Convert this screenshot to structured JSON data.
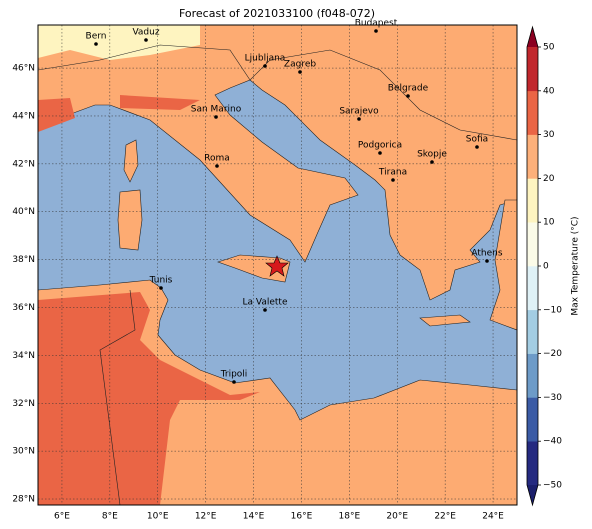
{
  "map": {
    "title": "Forecast of 2021033100 (f048-072)",
    "lonlim": [
      5,
      25
    ],
    "latlim": [
      27.75,
      47.8
    ],
    "lonticks": [
      {
        "value": 6,
        "label": "6°E"
      },
      {
        "value": 8,
        "label": "8°E"
      },
      {
        "value": 10,
        "label": "10°E"
      },
      {
        "value": 12,
        "label": "12°E"
      },
      {
        "value": 14,
        "label": "14°E"
      },
      {
        "value": 16,
        "label": "16°E"
      },
      {
        "value": 18,
        "label": "18°E"
      },
      {
        "value": 20,
        "label": "20°E"
      },
      {
        "value": 22,
        "label": "22°E"
      },
      {
        "value": 24,
        "label": "24°E"
      }
    ],
    "latticks": [
      {
        "value": 28,
        "label": "28°N"
      },
      {
        "value": 30,
        "label": "30°N"
      },
      {
        "value": 32,
        "label": "32°N"
      },
      {
        "value": 34,
        "label": "34°N"
      },
      {
        "value": 36,
        "label": "36°N"
      },
      {
        "value": 38,
        "label": "38°N"
      },
      {
        "value": 40,
        "label": "40°N"
      },
      {
        "value": 42,
        "label": "42°N"
      },
      {
        "value": 44,
        "label": "44°N"
      },
      {
        "value": 46,
        "label": "46°N"
      }
    ],
    "grid": true,
    "cities": [
      "Bern",
      "Vaduz",
      "Budapest",
      "Ljubljana",
      "Zagreb",
      "Belgrade",
      "San Marino",
      "Sarajevo",
      "Sofia",
      "Podgorica",
      "Skopje",
      "Roma",
      "Tirana",
      "Athens",
      "Tunis",
      "La Valette",
      "Tripoli"
    ],
    "colorbar": {
      "label": "Max Temperature (°C)",
      "lim": [
        -50,
        50
      ],
      "ticks": [
        {
          "value": -50,
          "label": "−50"
        },
        {
          "value": -40,
          "label": "−40"
        },
        {
          "value": -30,
          "label": "−30"
        },
        {
          "value": -20,
          "label": "−20"
        },
        {
          "value": -10,
          "label": "−10"
        },
        0,
        10,
        20,
        30,
        40,
        50
      ],
      "colors": [
        "#252a80",
        "#3b5ba5",
        "#6d9bc8",
        "#a3cde3",
        "#dff1f6",
        "#fbfbe8",
        "#fef4c0",
        "#fdb07a",
        "#ea6545",
        "#c1272d"
      ],
      "under_color": "#1b1f6b",
      "over_color": "#8b0021"
    }
  }
}
